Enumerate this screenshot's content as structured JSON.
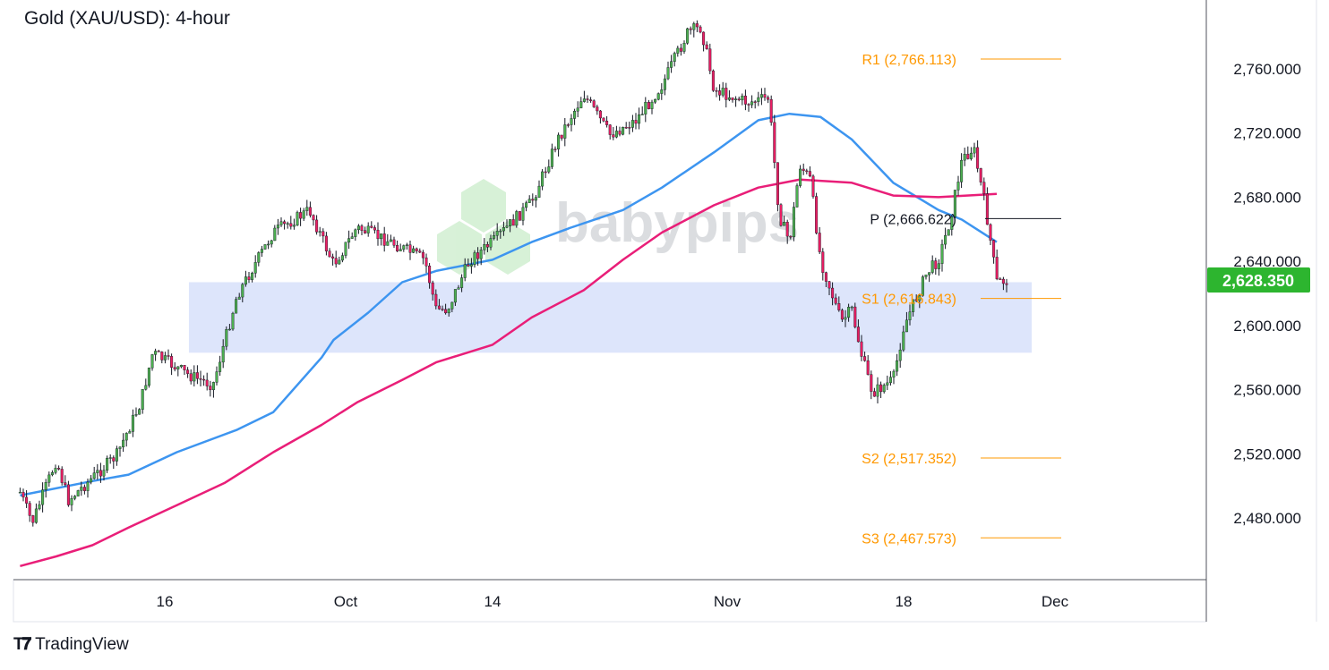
{
  "title": "Gold (XAU/USD): 4-hour",
  "watermark": "babypips",
  "footer": {
    "brand": "TradingView",
    "logo_icon": "tradingview-logo-icon"
  },
  "colors": {
    "up": "#4caf50",
    "down": "#e91e63",
    "ma_fast": "#3d95f0",
    "ma_slow": "#e91e78",
    "pivot_orange": "#ff9800",
    "pivot_black": "#131722",
    "zone": "#dde5fb",
    "last_price_bg": "#2db52f"
  },
  "chart_data": {
    "type": "candlestick",
    "title": "Gold (XAU/USD): 4-hour",
    "timeframe": "4-hour",
    "ylim": [
      2440,
      2795
    ],
    "y_ticks": [
      "2,480.000",
      "2,520.000",
      "2,560.000",
      "2,600.000",
      "2,640.000",
      "2,680.000",
      "2,720.000",
      "2,760.000"
    ],
    "y_tick_values": [
      2480,
      2520,
      2560,
      2600,
      2640,
      2680,
      2720,
      2760
    ],
    "x_ticks": [
      {
        "label": "16",
        "date": "09-16"
      },
      {
        "label": "Oct",
        "date": "10-01"
      },
      {
        "label": "14",
        "date": "10-14"
      },
      {
        "label": "Nov",
        "date": "11-01"
      },
      {
        "label": "18",
        "date": "11-18"
      },
      {
        "label": "Dec",
        "date": "12-01"
      }
    ],
    "grid": false,
    "last_price": "2,628.350",
    "last_price_value": 2628.35,
    "approx_price_path": [
      [
        "09-04",
        2496
      ],
      [
        "09-05",
        2477
      ],
      [
        "09-07",
        2516
      ],
      [
        "09-08",
        2491
      ],
      [
        "09-12",
        2519
      ],
      [
        "09-14",
        2552
      ],
      [
        "09-15",
        2583
      ],
      [
        "09-18",
        2569
      ],
      [
        "09-20",
        2563
      ],
      [
        "09-21",
        2591
      ],
      [
        "09-22",
        2619
      ],
      [
        "09-25",
        2658
      ],
      [
        "09-28",
        2672
      ],
      [
        "09-30",
        2638
      ],
      [
        "10-02",
        2661
      ],
      [
        "10-05",
        2652
      ],
      [
        "10-08",
        2641
      ],
      [
        "10-09",
        2610
      ],
      [
        "10-10",
        2610
      ],
      [
        "10-12",
        2641
      ],
      [
        "10-14",
        2652
      ],
      [
        "10-17",
        2677
      ],
      [
        "10-19",
        2716
      ],
      [
        "10-21",
        2744
      ],
      [
        "10-23",
        2719
      ],
      [
        "10-25",
        2728
      ],
      [
        "10-27",
        2750
      ],
      [
        "10-29",
        2783
      ],
      [
        "10-30",
        2786
      ],
      [
        "10-31",
        2747
      ],
      [
        "11-03",
        2739
      ],
      [
        "11-05",
        2742
      ],
      [
        "11-06",
        2669
      ],
      [
        "11-07",
        2652
      ],
      [
        "11-08",
        2700
      ],
      [
        "11-09",
        2691
      ],
      [
        "11-10",
        2641
      ],
      [
        "11-12",
        2602
      ],
      [
        "11-13",
        2610
      ],
      [
        "11-14",
        2580
      ],
      [
        "11-15",
        2558
      ],
      [
        "11-17",
        2566
      ],
      [
        "11-18",
        2599
      ],
      [
        "11-20",
        2633
      ],
      [
        "11-21",
        2641
      ],
      [
        "11-22",
        2666
      ],
      [
        "11-23",
        2703
      ],
      [
        "11-24",
        2711
      ],
      [
        "11-25",
        2675
      ],
      [
        "11-26",
        2627
      ],
      [
        "11-27",
        2628
      ]
    ],
    "moving_averages": [
      {
        "color_key": "ma_fast",
        "points": [
          [
            "09-04",
            2494
          ],
          [
            "09-10",
            2503
          ],
          [
            "09-13",
            2507
          ],
          [
            "09-17",
            2521
          ],
          [
            "09-22",
            2535
          ],
          [
            "09-25",
            2546
          ],
          [
            "09-29",
            2580
          ],
          [
            "09-30",
            2591
          ],
          [
            "10-03",
            2608
          ],
          [
            "10-06",
            2627
          ],
          [
            "10-09",
            2634
          ],
          [
            "10-14",
            2641
          ],
          [
            "10-17",
            2652
          ],
          [
            "10-20",
            2661
          ],
          [
            "10-24",
            2672
          ],
          [
            "10-27",
            2686
          ],
          [
            "10-31",
            2708
          ],
          [
            "11-04",
            2728
          ],
          [
            "11-07",
            2732
          ],
          [
            "11-10",
            2730
          ],
          [
            "11-13",
            2716
          ],
          [
            "11-17",
            2689
          ],
          [
            "11-21",
            2672
          ],
          [
            "11-23",
            2666
          ],
          [
            "11-26",
            2652
          ]
        ]
      },
      {
        "color_key": "ma_slow",
        "points": [
          [
            "09-04",
            2450
          ],
          [
            "09-07",
            2456
          ],
          [
            "09-10",
            2463
          ],
          [
            "09-13",
            2474
          ],
          [
            "09-17",
            2488
          ],
          [
            "09-21",
            2502
          ],
          [
            "09-25",
            2521
          ],
          [
            "09-29",
            2538
          ],
          [
            "10-02",
            2552
          ],
          [
            "10-06",
            2566
          ],
          [
            "10-09",
            2577
          ],
          [
            "10-14",
            2588
          ],
          [
            "10-17",
            2605
          ],
          [
            "10-21",
            2622
          ],
          [
            "10-24",
            2641
          ],
          [
            "10-27",
            2658
          ],
          [
            "10-31",
            2675
          ],
          [
            "11-04",
            2686
          ],
          [
            "11-08",
            2691
          ],
          [
            "11-13",
            2689
          ],
          [
            "11-17",
            2681
          ],
          [
            "11-21",
            2680
          ],
          [
            "11-26",
            2682
          ]
        ]
      }
    ],
    "zone": {
      "from_date": "09-18",
      "to_date": "11-29",
      "low": 2583,
      "high": 2627
    },
    "pivots": [
      {
        "label": "R1 (2,766.113)",
        "value": 2766.113,
        "color_key": "pivot_orange"
      },
      {
        "label": "P (2,666.622)",
        "value": 2666.622,
        "color_key": "pivot_black"
      },
      {
        "label": "S1 (2,616.843)",
        "value": 2616.843,
        "color_key": "pivot_orange"
      },
      {
        "label": "S2 (2,517.352)",
        "value": 2517.352,
        "color_key": "pivot_orange"
      },
      {
        "label": "S3 (2,467.573)",
        "value": 2467.573,
        "color_key": "pivot_orange"
      }
    ]
  }
}
